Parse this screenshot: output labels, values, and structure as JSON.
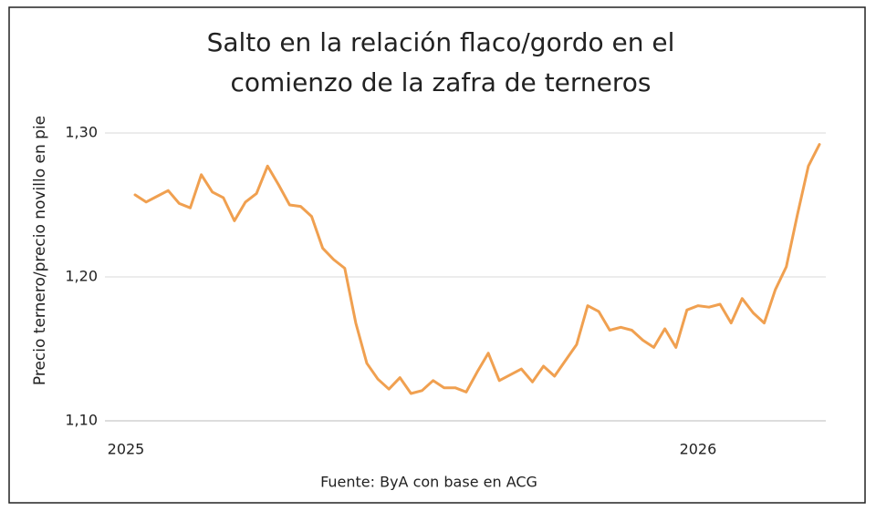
{
  "chart_data": {
    "type": "line",
    "title": [
      "Salto en la relación flaco/gordo en el",
      "comienzo de la zafra de terneros"
    ],
    "y_label": "Precio ternero/precio novillo en pie",
    "source": "Fuente: ByA con base en ACG",
    "categories": [
      "2025",
      null,
      null,
      null,
      null,
      null,
      null,
      null,
      null,
      null,
      null,
      null,
      null,
      null,
      null,
      null,
      null,
      null,
      null,
      null,
      null,
      null,
      null,
      null,
      null,
      null,
      null,
      null,
      null,
      null,
      null,
      null,
      null,
      null,
      null,
      null,
      null,
      null,
      null,
      null,
      null,
      null,
      null,
      null,
      null,
      null,
      null,
      null,
      null,
      null,
      null,
      "2026",
      null,
      null,
      null,
      null,
      null,
      null,
      null,
      null,
      null,
      null,
      null
    ],
    "series": [
      {
        "name": "Precio ternero/precio novillo en pie",
        "color": "#f0a050",
        "values": [
          1.257,
          1.252,
          1.256,
          1.26,
          1.251,
          1.248,
          1.271,
          1.259,
          1.255,
          1.239,
          1.252,
          1.258,
          1.277,
          1.264,
          1.25,
          1.249,
          1.242,
          1.22,
          1.212,
          1.206,
          1.168,
          1.14,
          1.129,
          1.122,
          1.13,
          1.119,
          1.121,
          1.128,
          1.123,
          1.123,
          1.12,
          1.134,
          1.147,
          1.128,
          1.132,
          1.136,
          1.127,
          1.138,
          1.131,
          1.142,
          1.153,
          1.18,
          1.176,
          1.163,
          1.165,
          1.163,
          1.156,
          1.151,
          1.164,
          1.151,
          1.177,
          1.18,
          1.179,
          1.181,
          1.168,
          1.185,
          1.175,
          1.168,
          1.191,
          1.207,
          1.243,
          1.277,
          1.292
        ]
      }
    ],
    "ylim": [
      1.1,
      1.3
    ],
    "yticks": [
      {
        "value": 1.1,
        "label": "1,10"
      },
      {
        "value": 1.2,
        "label": "1,20"
      },
      {
        "value": 1.3,
        "label": "1,30"
      }
    ],
    "grid": true
  }
}
